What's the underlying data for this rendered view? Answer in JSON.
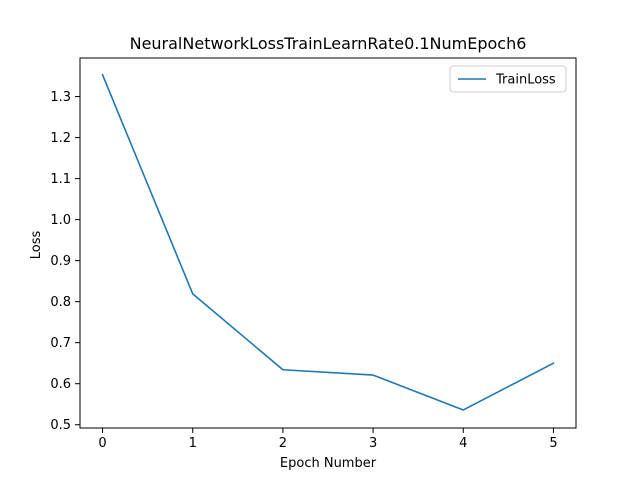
{
  "chart_data": {
    "type": "line",
    "title": "NeuralNetworkLossTrainLearnRate0.1NumEpoch6",
    "xlabel": "Epoch Number",
    "ylabel": "Loss",
    "x": [
      0,
      1,
      2,
      3,
      4,
      5
    ],
    "xlim": [
      -0.25,
      5.25
    ],
    "ylim": [
      0.492,
      1.394
    ],
    "xticks": [
      "0",
      "1",
      "2",
      "3",
      "4",
      "5"
    ],
    "yticks": [
      "0.5",
      "0.6",
      "0.7",
      "0.8",
      "0.9",
      "1.0",
      "1.1",
      "1.2",
      "1.3"
    ],
    "grid": false,
    "legend_position": "top-right",
    "series": [
      {
        "name": "TrainLoss",
        "color": "#1f77b4",
        "values": [
          1.353,
          0.819,
          0.634,
          0.621,
          0.536,
          0.65
        ]
      }
    ]
  }
}
